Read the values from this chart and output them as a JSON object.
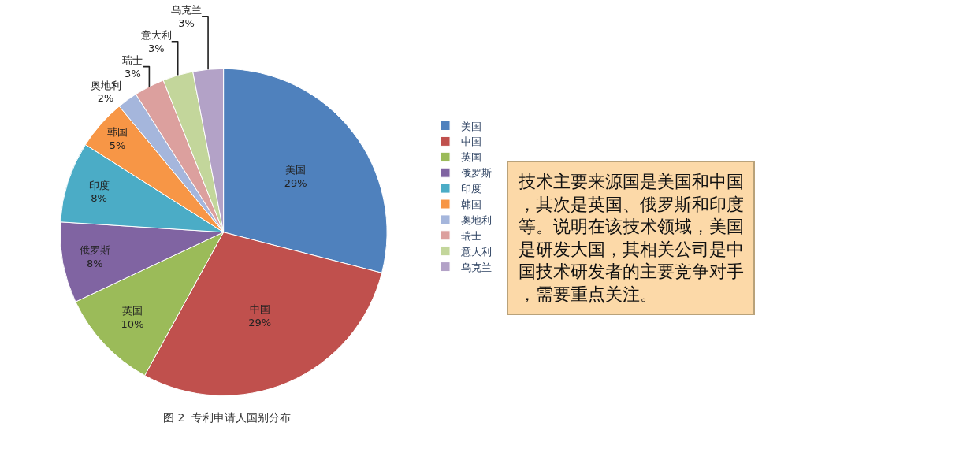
{
  "chart_data": {
    "type": "pie",
    "categories": [
      "美国",
      "中国",
      "英国",
      "俄罗斯",
      "印度",
      "韩国",
      "奥地利",
      "瑞士",
      "意大利",
      "乌克兰"
    ],
    "values": [
      29,
      29,
      10,
      8,
      8,
      5,
      2,
      3,
      3,
      3
    ],
    "value_labels": [
      "29%",
      "29%",
      "10%",
      "8%",
      "8%",
      "5%",
      "2%",
      "3%",
      "3%",
      "3%"
    ],
    "colors": [
      "#4f81bd",
      "#c0504d",
      "#9bbb59",
      "#8064a2",
      "#4bacc6",
      "#f79646",
      "#a5b6dc",
      "#dca09e",
      "#c3d69b",
      "#b3a2c7"
    ],
    "legend": "right",
    "annotations": [
      "图 2  专利申请人国别分布",
      "技术主要来源国是美国和中国，其次是英国、俄罗斯和印度等。说明在该技术领域，美国是研发大国，其相关公司是中国技术研发者的主要竞争对手，需要重点关注。"
    ]
  }
}
